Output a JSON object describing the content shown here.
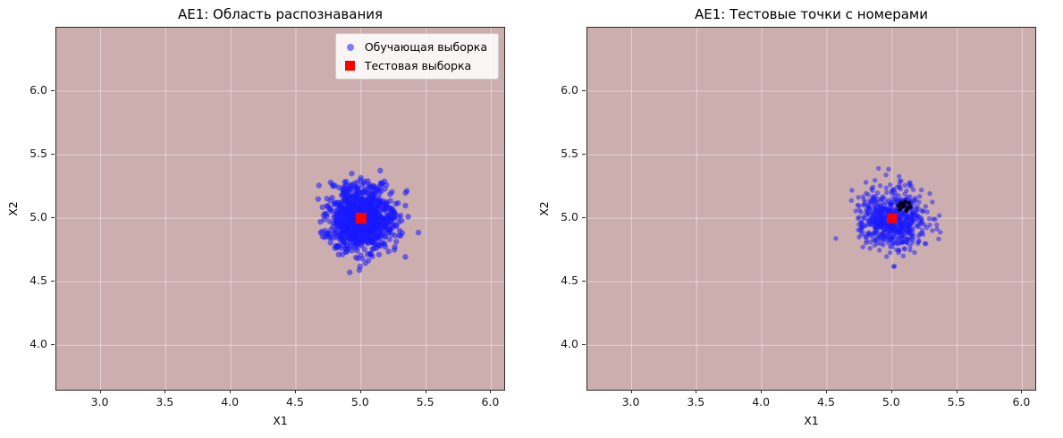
{
  "figure": {
    "background": "#ffffff"
  },
  "chart_data": [
    {
      "type": "scatter",
      "title": "AE1: Область распознавания",
      "xlabel": "X1",
      "ylabel": "X2",
      "xlim": [
        2.66,
        6.1
      ],
      "ylim": [
        3.65,
        6.5
      ],
      "xticks": [
        "3.0",
        "3.5",
        "4.0",
        "4.5",
        "5.0",
        "5.5",
        "6.0"
      ],
      "yticks": [
        "4.0",
        "4.5",
        "5.0",
        "5.5",
        "6.0"
      ],
      "grid": true,
      "grid_color": "rgba(255,255,255,0.45)",
      "region_color": "#ccaeae",
      "series": [
        {
          "name": "Обучающая выборка",
          "marker": "circle",
          "color": "#1a1aff",
          "opacity": 0.55,
          "point_radius": 3.2,
          "in_legend": true,
          "cluster": {
            "center": [
              5.0,
              5.0
            ],
            "std": 0.13,
            "n": 1000,
            "seed": 42
          }
        },
        {
          "name": "Тестовая выборка",
          "marker": "square",
          "color": "#ff0000",
          "opacity": 1,
          "point_size": 12,
          "in_legend": true,
          "points": [
            [
              5.0,
              5.0
            ]
          ]
        }
      ],
      "legend": {
        "visible": true,
        "position": "upper-right"
      }
    },
    {
      "type": "scatter",
      "title": "AE1: Тестовые точки с номерами",
      "xlabel": "X1",
      "ylabel": "X2",
      "xlim": [
        2.66,
        6.1
      ],
      "ylim": [
        3.65,
        6.5
      ],
      "xticks": [
        "3.0",
        "3.5",
        "4.0",
        "4.5",
        "5.0",
        "5.5",
        "6.0"
      ],
      "yticks": [
        "4.0",
        "4.5",
        "5.0",
        "5.5",
        "6.0"
      ],
      "grid": true,
      "grid_color": "rgba(255,255,255,0.45)",
      "region_color": "#ccaeae",
      "series": [
        {
          "marker": "circle",
          "color": "#1a1aff",
          "opacity": 0.5,
          "point_radius": 2.7,
          "in_legend": false,
          "cluster": {
            "center": [
              5.0,
              5.0
            ],
            "std": 0.12,
            "n": 650,
            "seed": 7
          }
        },
        {
          "marker": "circle",
          "color": "#000000",
          "opacity": 0.9,
          "point_radius": 2.4,
          "in_legend": false,
          "points": [
            [
              5.06,
              5.07
            ],
            [
              5.09,
              5.1
            ],
            [
              5.12,
              5.08
            ],
            [
              5.07,
              5.12
            ],
            [
              5.1,
              5.13
            ],
            [
              5.13,
              5.12
            ],
            [
              5.05,
              5.1
            ],
            [
              5.11,
              5.06
            ],
            [
              5.08,
              5.09
            ],
            [
              5.14,
              5.09
            ]
          ]
        },
        {
          "marker": "square",
          "color": "#ff0000",
          "opacity": 1,
          "point_size": 11,
          "in_legend": false,
          "points": [
            [
              5.0,
              5.0
            ]
          ]
        }
      ],
      "legend": {
        "visible": false
      }
    }
  ]
}
